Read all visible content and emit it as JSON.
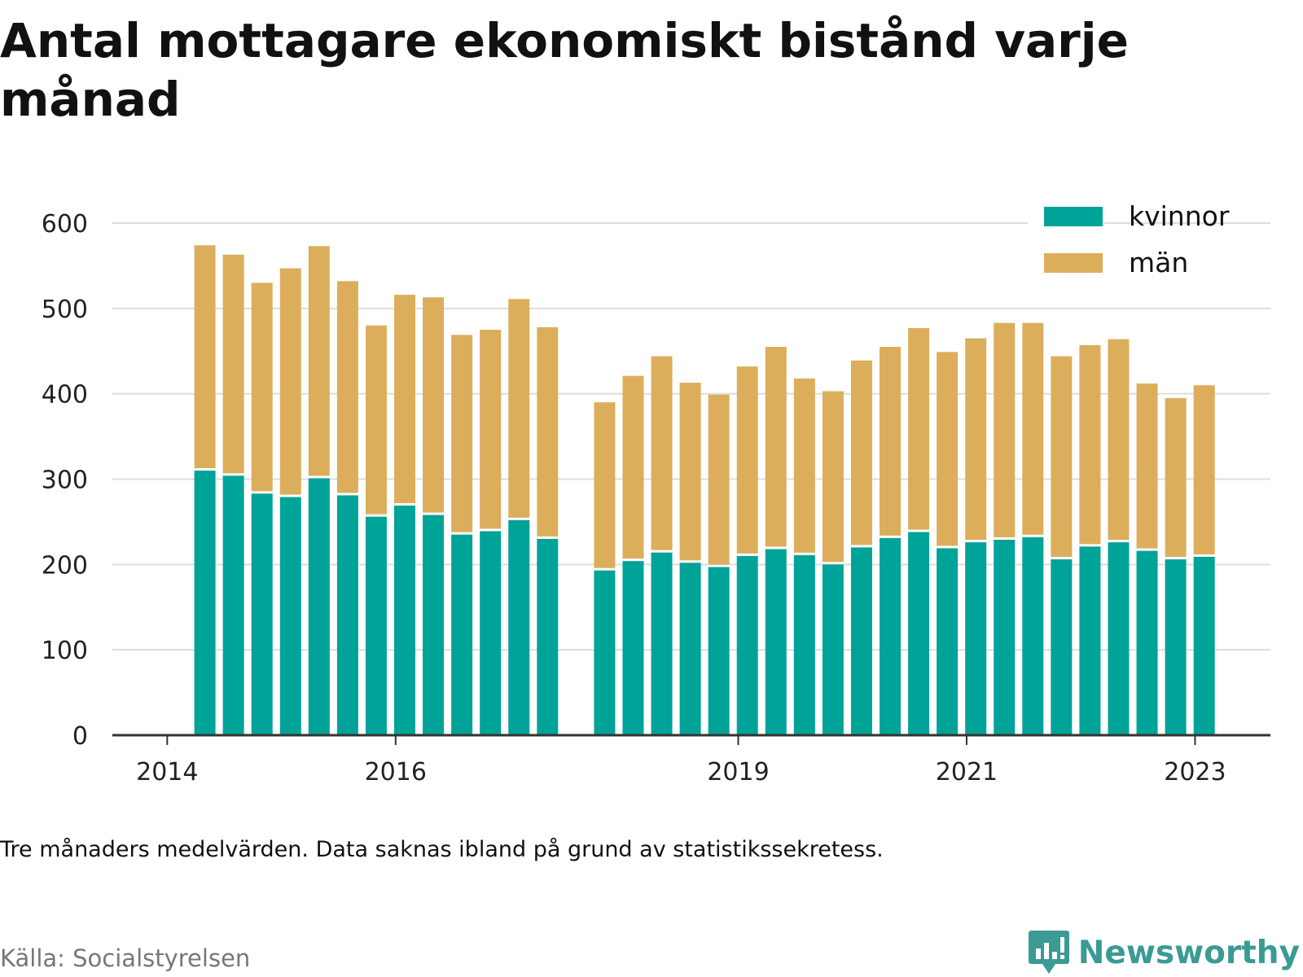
{
  "title": "Antal mottagare ekonomiskt bistånd varje månad",
  "note": "Tre månaders medelvärden. Data saknas ibland på grund av statistikssekretess.",
  "source": "Källa: Socialstyrelsen",
  "logo": {
    "name": "Newsworthy",
    "color": "#3a9b94",
    "icon": "bar-chart-speech-bubble-icon"
  },
  "colors": {
    "kvinnor": "#00a398",
    "man": "#dcae5c",
    "grid": "#dddddd",
    "axis": "#333333"
  },
  "chart_data": {
    "type": "bar",
    "stacked": true,
    "ylim": [
      0,
      600
    ],
    "yticks": [
      0,
      100,
      200,
      300,
      400,
      500,
      600
    ],
    "x_ticks": [
      {
        "x": 2014.0,
        "label": "2014"
      },
      {
        "x": 2016.0,
        "label": "2016"
      },
      {
        "x": 2019.0,
        "label": "2019"
      },
      {
        "x": 2021.0,
        "label": "2021"
      },
      {
        "x": 2023.0,
        "label": "2023"
      }
    ],
    "xlim": [
      2013.52,
      2023.66
    ],
    "grid": true,
    "legend": "top-right",
    "x": [
      2014.33,
      2014.58,
      2014.83,
      2015.08,
      2015.33,
      2015.58,
      2015.83,
      2016.08,
      2016.33,
      2016.58,
      2016.83,
      2017.08,
      2017.33,
      2017.83,
      2018.08,
      2018.33,
      2018.58,
      2018.83,
      2019.08,
      2019.33,
      2019.58,
      2019.83,
      2020.08,
      2020.33,
      2020.58,
      2020.83,
      2021.08,
      2021.33,
      2021.58,
      2021.83,
      2022.08,
      2022.33,
      2022.58,
      2022.83,
      2023.08
    ],
    "series": [
      {
        "name": "kvinnor",
        "values": [
          310,
          304,
          283,
          279,
          301,
          281,
          256,
          269,
          258,
          235,
          239,
          252,
          230,
          193,
          204,
          214,
          202,
          197,
          210,
          218,
          211,
          200,
          220,
          231,
          238,
          219,
          226,
          229,
          232,
          206,
          221,
          226,
          216,
          206,
          209
        ]
      },
      {
        "name": "män",
        "values": [
          264,
          259,
          247,
          268,
          272,
          251,
          224,
          247,
          255,
          234,
          236,
          259,
          248,
          197,
          217,
          230,
          211,
          202,
          222,
          237,
          207,
          203,
          219,
          224,
          239,
          230,
          239,
          254,
          251,
          238,
          236,
          238,
          196,
          189,
          201
        ]
      }
    ]
  }
}
